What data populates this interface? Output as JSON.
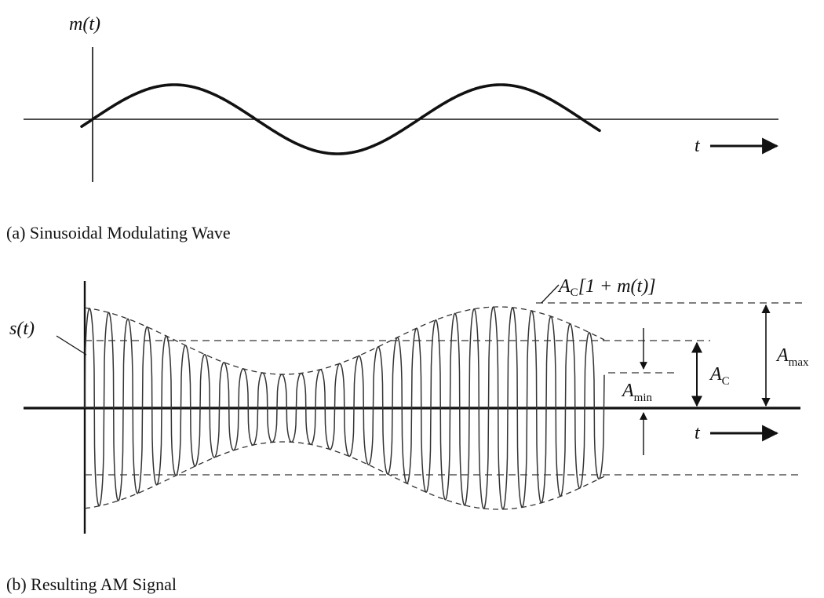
{
  "panel_a": {
    "ylabel": "m(t)",
    "xlabel": "t",
    "caption": "(a) Sinusoidal Modulating Wave"
  },
  "panel_b": {
    "signal_label": "s(t)",
    "envelope_label": {
      "a": "A",
      "sub": "C",
      "rest": "[1 + m(t)]"
    },
    "ac_label": {
      "a": "A",
      "sub": "C"
    },
    "amin_label": {
      "a": "A",
      "sub": "min"
    },
    "amax_label": {
      "a": "A",
      "sub": "max"
    },
    "xlabel": "t",
    "caption": "(b) Resulting AM Signal"
  },
  "colors": {
    "ink": "#111111",
    "carrier": "#333333",
    "dash": "#333333"
  }
}
